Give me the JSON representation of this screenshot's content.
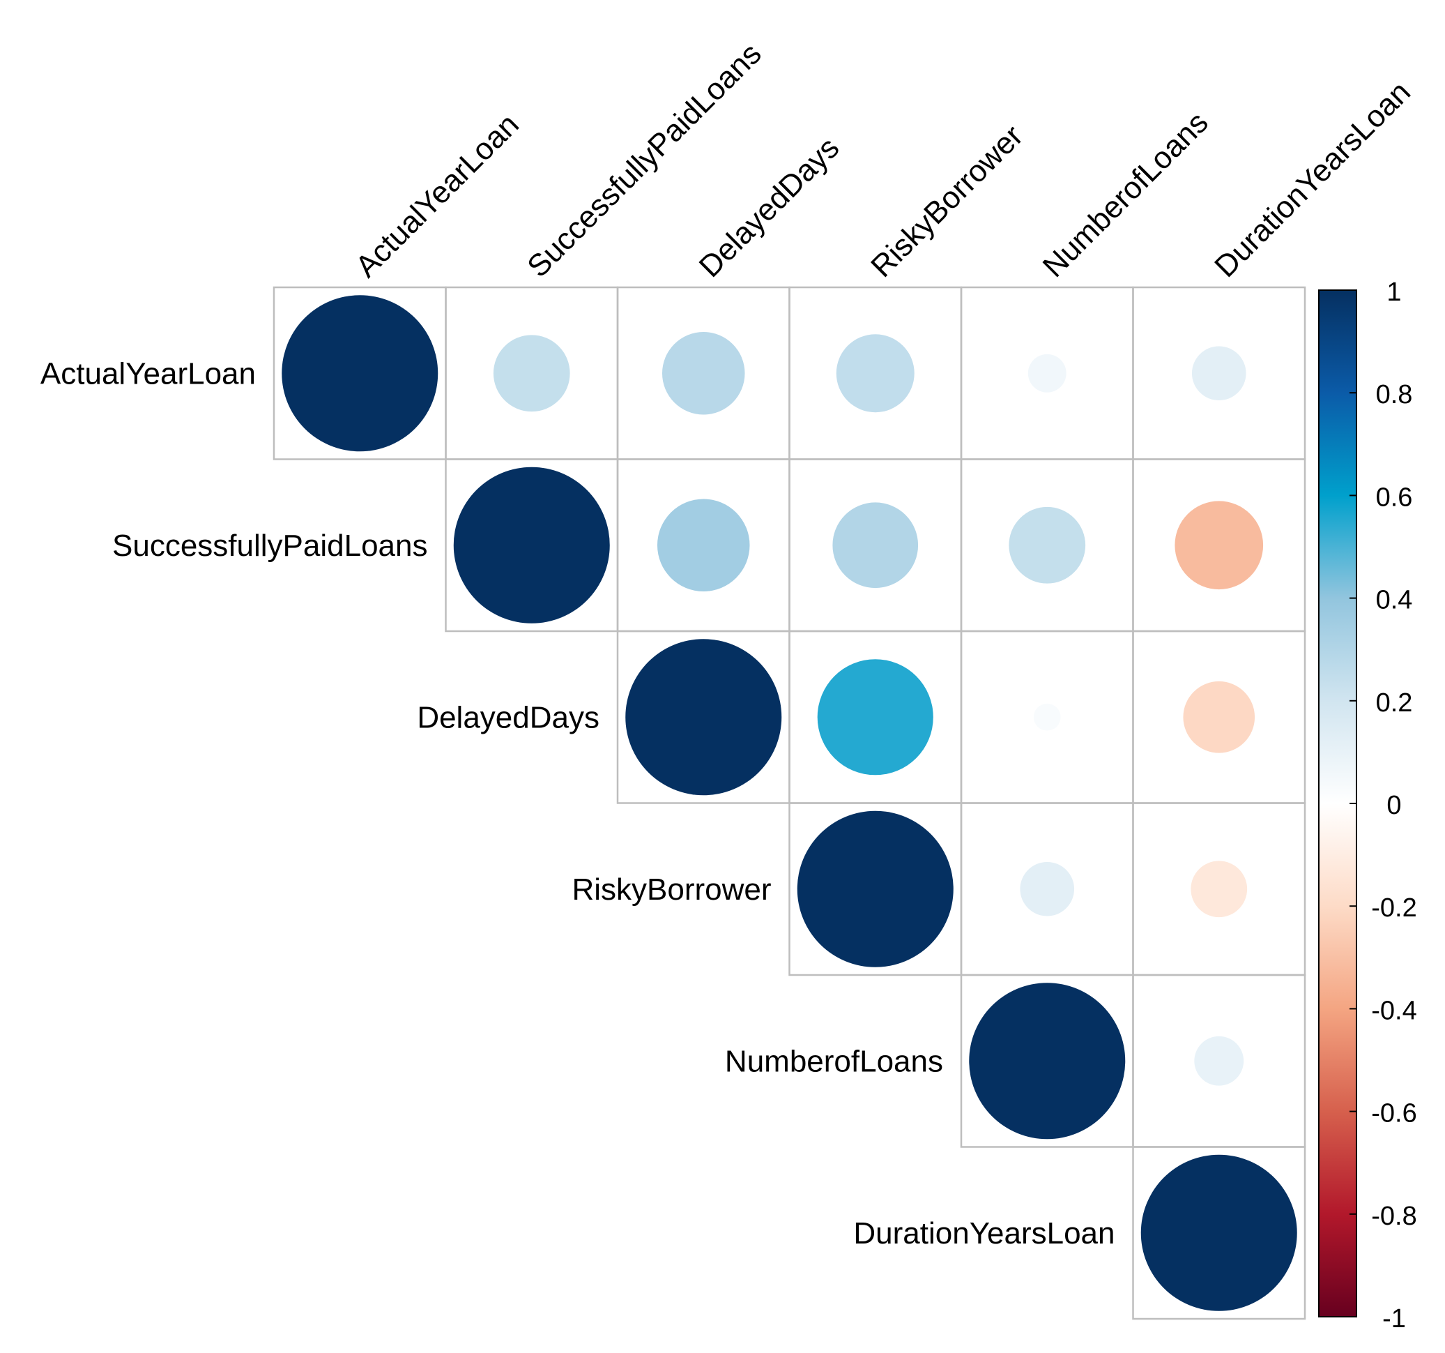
{
  "chart_data": {
    "type": "heatmap",
    "style": "correlation-circle-upper",
    "variables": [
      "ActualYearLoan",
      "SuccessfullyPaidLoans",
      "DelayedDays",
      "RiskyBorrower",
      "NumberofLoans",
      "DurationYearsLoan"
    ],
    "matrix": [
      [
        1.0,
        0.24,
        0.28,
        0.25,
        0.06,
        0.12
      ],
      [
        null,
        1.0,
        0.35,
        0.3,
        0.24,
        -0.32
      ],
      [
        null,
        null,
        1.0,
        0.55,
        0.03,
        -0.21
      ],
      [
        null,
        null,
        null,
        1.0,
        0.12,
        -0.13
      ],
      [
        null,
        null,
        null,
        null,
        1.0,
        0.1
      ],
      [
        null,
        null,
        null,
        null,
        null,
        1.0
      ]
    ],
    "colorbar": {
      "range": [
        -1,
        1
      ],
      "ticks": [
        1,
        0.8,
        0.6,
        0.4,
        0.2,
        0,
        -0.2,
        -0.4,
        -0.6,
        -0.8,
        -1
      ],
      "tick_labels": [
        "1",
        "0.8",
        "0.6",
        "0.4",
        "0.2",
        "0",
        "-0.2",
        "-0.4",
        "-0.6",
        "-0.8",
        "-1"
      ],
      "gradient_stops": [
        {
          "value": -1.0,
          "color": "#67001F"
        },
        {
          "value": -0.8,
          "color": "#B2182B"
        },
        {
          "value": -0.6,
          "color": "#D6604D"
        },
        {
          "value": -0.4,
          "color": "#F4A582"
        },
        {
          "value": -0.2,
          "color": "#FDDBC7"
        },
        {
          "value": 0.0,
          "color": "#FFFFFF"
        },
        {
          "value": 0.2,
          "color": "#D1E5F0"
        },
        {
          "value": 0.4,
          "color": "#92C5DE"
        },
        {
          "value": 0.6,
          "color": "#00A0CC"
        },
        {
          "value": 0.8,
          "color": "#0B5BA8"
        },
        {
          "value": 1.0,
          "color": "#053061"
        }
      ]
    },
    "grid_color": "#BEBEBE"
  }
}
